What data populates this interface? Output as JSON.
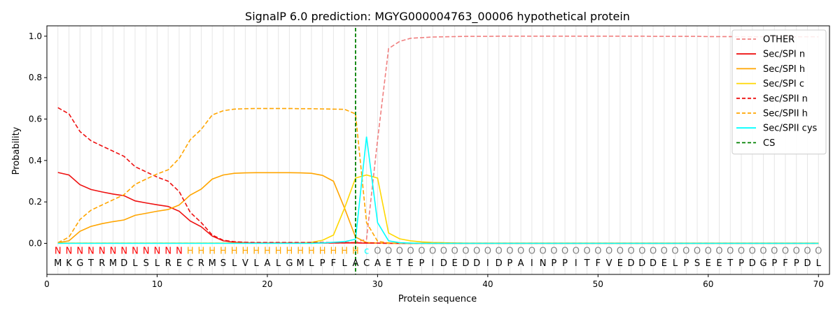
{
  "chart_data": {
    "type": "line",
    "title": "SignalP 6.0 prediction: MGYG000004763_00006 hypothetical protein",
    "xlabel": "Protein sequence",
    "ylabel": "Probability",
    "xlim": [
      0,
      71
    ],
    "ylim": [
      -0.15,
      1.05
    ],
    "xticks": [
      0,
      10,
      20,
      30,
      40,
      50,
      60,
      70
    ],
    "yticks": [
      0.0,
      0.2,
      0.4,
      0.6,
      0.8,
      1.0
    ],
    "x": [
      1,
      2,
      3,
      4,
      5,
      6,
      7,
      8,
      9,
      10,
      11,
      12,
      13,
      14,
      15,
      16,
      17,
      18,
      19,
      20,
      21,
      22,
      23,
      24,
      25,
      26,
      27,
      28,
      29,
      30,
      31,
      32,
      33,
      34,
      35,
      36,
      37,
      38,
      39,
      40,
      41,
      42,
      43,
      44,
      45,
      46,
      47,
      48,
      49,
      50,
      51,
      52,
      53,
      54,
      55,
      56,
      57,
      58,
      59,
      60,
      61,
      62,
      63,
      64,
      65,
      66,
      67,
      68,
      69,
      70
    ],
    "sequence": [
      "M",
      "K",
      "G",
      "T",
      "R",
      "M",
      "D",
      "L",
      "S",
      "L",
      "R",
      "E",
      "C",
      "R",
      "M",
      "S",
      "L",
      "V",
      "L",
      "A",
      "L",
      "G",
      "M",
      "L",
      "P",
      "F",
      "L",
      "A",
      "C",
      "A",
      "E",
      "T",
      "E",
      "P",
      "I",
      "D",
      "E",
      "D",
      "D",
      "I",
      "D",
      "P",
      "A",
      "I",
      "N",
      "P",
      "P",
      "I",
      "T",
      "F",
      "V",
      "E",
      "D",
      "D",
      "D",
      "E",
      "L",
      "P",
      "S",
      "E",
      "E",
      "T",
      "P",
      "D",
      "G",
      "P",
      "F",
      "P",
      "D",
      "L"
    ],
    "region_labels": [
      "N",
      "N",
      "N",
      "N",
      "N",
      "N",
      "N",
      "N",
      "N",
      "N",
      "N",
      "N",
      "H",
      "H",
      "H",
      "H",
      "H",
      "H",
      "H",
      "H",
      "H",
      "H",
      "H",
      "H",
      "H",
      "H",
      "H",
      "H",
      "c",
      "O",
      "O",
      "O",
      "O",
      "O",
      "O",
      "O",
      "O",
      "O",
      "O",
      "O",
      "O",
      "O",
      "O",
      "O",
      "O",
      "O",
      "O",
      "O",
      "O",
      "O",
      "O",
      "O",
      "O",
      "O",
      "O",
      "O",
      "O",
      "O",
      "O",
      "O",
      "O",
      "O",
      "O",
      "O",
      "O",
      "O",
      "O",
      "O",
      "O",
      "O"
    ],
    "region_colors": {
      "N": "#ff0000",
      "H": "#ffa500",
      "c": "#00ffff",
      "O": "#808080"
    },
    "series": [
      {
        "name": "OTHER",
        "color": "#f08080",
        "dash": true,
        "values": [
          0.001,
          0.001,
          0.001,
          0.001,
          0.001,
          0.001,
          0.001,
          0.001,
          0.001,
          0.001,
          0.001,
          0.001,
          0.001,
          0.001,
          0.001,
          0.001,
          0.001,
          0.001,
          0.001,
          0.001,
          0.001,
          0.001,
          0.001,
          0.001,
          0.001,
          0.001,
          0.002,
          0.005,
          0.02,
          0.5,
          0.94,
          0.975,
          0.99,
          0.993,
          0.996,
          0.997,
          0.998,
          0.999,
          0.999,
          0.999,
          1.0,
          1.0,
          1.0,
          1.0,
          1.0,
          1.0,
          1.0,
          1.0,
          1.0,
          1.0,
          1.0,
          1.0,
          1.0,
          1.0,
          0.999,
          0.999,
          0.999,
          0.999,
          0.999,
          0.998,
          0.998,
          0.998,
          0.997,
          0.997,
          0.997,
          0.997,
          0.997,
          0.997,
          0.997,
          0.997
        ]
      },
      {
        "name": "Sec/SPI n",
        "color": "#ee1111",
        "dash": false,
        "values": [
          0.342,
          0.33,
          0.283,
          0.26,
          0.248,
          0.238,
          0.23,
          0.205,
          0.195,
          0.186,
          0.178,
          0.155,
          0.108,
          0.08,
          0.035,
          0.012,
          0.005,
          0.003,
          0.002,
          0.002,
          0.002,
          0.002,
          0.002,
          0.002,
          0.002,
          0.002,
          0.002,
          0.002,
          0.001,
          0.001,
          0.001,
          0.0,
          0.0,
          0.0,
          0.0,
          0.0,
          0.0,
          0.0,
          0.0,
          0.0,
          0.0,
          0.0,
          0.0,
          0.0,
          0.0,
          0.0,
          0.0,
          0.0,
          0.0,
          0.0,
          0.0,
          0.0,
          0.0,
          0.0,
          0.0,
          0.0,
          0.0,
          0.0,
          0.0,
          0.0,
          0.0,
          0.0,
          0.0,
          0.0,
          0.0,
          0.0,
          0.0,
          0.0,
          0.0,
          0.0
        ]
      },
      {
        "name": "Sec/SPI h",
        "color": "#ffa500",
        "dash": false,
        "values": [
          0.003,
          0.012,
          0.058,
          0.082,
          0.095,
          0.105,
          0.113,
          0.135,
          0.145,
          0.155,
          0.163,
          0.185,
          0.233,
          0.262,
          0.31,
          0.33,
          0.338,
          0.34,
          0.341,
          0.341,
          0.341,
          0.341,
          0.34,
          0.338,
          0.328,
          0.3,
          0.17,
          0.03,
          0.004,
          0.001,
          0.0,
          0.0,
          0.0,
          0.0,
          0.0,
          0.0,
          0.0,
          0.0,
          0.0,
          0.0,
          0.0,
          0.0,
          0.0,
          0.0,
          0.0,
          0.0,
          0.0,
          0.0,
          0.0,
          0.0,
          0.0,
          0.0,
          0.0,
          0.0,
          0.0,
          0.0,
          0.0,
          0.0,
          0.0,
          0.0,
          0.0,
          0.0,
          0.0,
          0.0,
          0.0,
          0.0,
          0.0,
          0.0,
          0.0,
          0.0
        ]
      },
      {
        "name": "Sec/SPI c",
        "color": "#ffd700",
        "dash": false,
        "values": [
          0.001,
          0.001,
          0.001,
          0.001,
          0.001,
          0.001,
          0.001,
          0.001,
          0.001,
          0.001,
          0.001,
          0.001,
          0.001,
          0.001,
          0.001,
          0.001,
          0.001,
          0.001,
          0.001,
          0.001,
          0.001,
          0.001,
          0.002,
          0.005,
          0.015,
          0.04,
          0.17,
          0.315,
          0.33,
          0.315,
          0.05,
          0.022,
          0.012,
          0.007,
          0.004,
          0.003,
          0.002,
          0.001,
          0.001,
          0.001,
          0.001,
          0.001,
          0.001,
          0.001,
          0.001,
          0.001,
          0.001,
          0.001,
          0.001,
          0.001,
          0.001,
          0.001,
          0.001,
          0.001,
          0.001,
          0.001,
          0.001,
          0.001,
          0.001,
          0.001,
          0.001,
          0.001,
          0.001,
          0.001,
          0.001,
          0.001,
          0.001,
          0.001,
          0.001,
          0.001
        ]
      },
      {
        "name": "Sec/SPII n",
        "color": "#ee1111",
        "dash": true,
        "values": [
          0.655,
          0.625,
          0.54,
          0.495,
          0.47,
          0.445,
          0.42,
          0.37,
          0.345,
          0.32,
          0.3,
          0.25,
          0.15,
          0.1,
          0.04,
          0.015,
          0.008,
          0.005,
          0.004,
          0.004,
          0.004,
          0.004,
          0.004,
          0.004,
          0.004,
          0.004,
          0.004,
          0.003,
          0.002,
          0.001,
          0.0,
          0.0,
          0.0,
          0.0,
          0.0,
          0.0,
          0.0,
          0.0,
          0.0,
          0.0,
          0.0,
          0.0,
          0.0,
          0.0,
          0.0,
          0.0,
          0.0,
          0.0,
          0.0,
          0.0,
          0.0,
          0.0,
          0.0,
          0.0,
          0.0,
          0.0,
          0.0,
          0.0,
          0.0,
          0.0,
          0.0,
          0.0,
          0.0,
          0.0,
          0.0,
          0.0,
          0.0,
          0.0,
          0.0,
          0.0
        ]
      },
      {
        "name": "Sec/SPII h",
        "color": "#ffa500",
        "dash": true,
        "values": [
          0.003,
          0.03,
          0.115,
          0.16,
          0.185,
          0.21,
          0.235,
          0.285,
          0.31,
          0.335,
          0.355,
          0.41,
          0.5,
          0.55,
          0.62,
          0.64,
          0.648,
          0.65,
          0.651,
          0.651,
          0.651,
          0.651,
          0.65,
          0.65,
          0.649,
          0.648,
          0.647,
          0.625,
          0.1,
          0.01,
          0.002,
          0.001,
          0.0,
          0.0,
          0.0,
          0.0,
          0.0,
          0.0,
          0.0,
          0.0,
          0.0,
          0.0,
          0.0,
          0.0,
          0.0,
          0.0,
          0.0,
          0.0,
          0.0,
          0.0,
          0.0,
          0.0,
          0.0,
          0.0,
          0.0,
          0.0,
          0.0,
          0.0,
          0.0,
          0.0,
          0.0,
          0.0,
          0.0,
          0.0,
          0.0,
          0.0,
          0.0,
          0.0,
          0.0,
          0.0
        ]
      },
      {
        "name": "Sec/SPII cys",
        "color": "#00ffff",
        "dash": false,
        "values": [
          0.0,
          0.0,
          0.0,
          0.0,
          0.0,
          0.0,
          0.0,
          0.0,
          0.0,
          0.0,
          0.0,
          0.0,
          0.0,
          0.0,
          0.0,
          0.0,
          0.0,
          0.0,
          0.0,
          0.0,
          0.0,
          0.0,
          0.0,
          0.0,
          0.002,
          0.005,
          0.008,
          0.02,
          0.515,
          0.1,
          0.012,
          0.003,
          0.001,
          0.0,
          0.0,
          0.0,
          0.0,
          0.0,
          0.0,
          0.0,
          0.0,
          0.0,
          0.0,
          0.0,
          0.0,
          0.0,
          0.0,
          0.0,
          0.0,
          0.0,
          0.0,
          0.0,
          0.0,
          0.0,
          0.0,
          0.0,
          0.0,
          0.0,
          0.0,
          0.0,
          0.0,
          0.0,
          0.0,
          0.0,
          0.0,
          0.0,
          0.0,
          0.0,
          0.0,
          0.0
        ]
      }
    ],
    "cs": {
      "name": "CS",
      "color": "#008000",
      "x": 28
    },
    "legend_position": "top-right",
    "grid": "vertical lines at each residue"
  }
}
